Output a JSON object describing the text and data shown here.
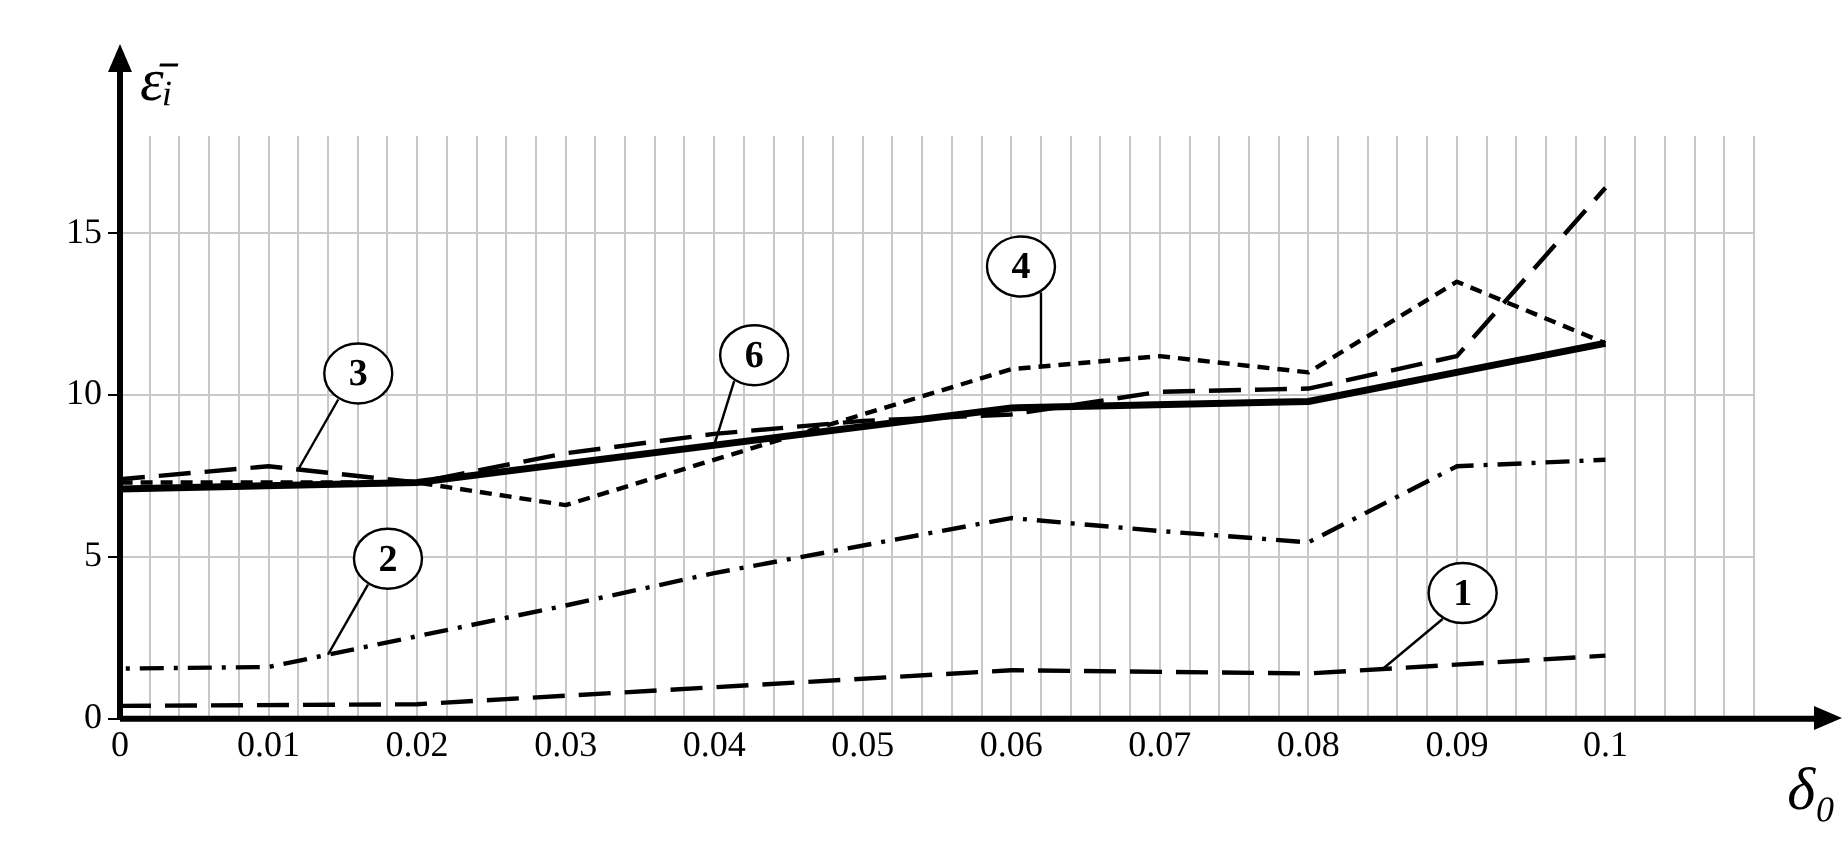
{
  "chart_data": {
    "type": "line",
    "xlabel": "δ₀",
    "ylabel": "ε̄ᵢ",
    "xlim": [
      0,
      0.11
    ],
    "ylim": [
      0,
      18
    ],
    "xticks": [
      0,
      {
        "value": 0.002,
        "label": null
      },
      {
        "value": 0.004,
        "label": null
      },
      {
        "value": 0.006,
        "label": null
      },
      {
        "value": 0.008,
        "label": null
      },
      0.01,
      {
        "value": 0.012,
        "label": null
      },
      {
        "value": 0.014,
        "label": null
      },
      {
        "value": 0.016,
        "label": null
      },
      {
        "value": 0.018,
        "label": null
      },
      0.02,
      {
        "value": 0.022,
        "label": null
      },
      {
        "value": 0.024,
        "label": null
      },
      {
        "value": 0.026,
        "label": null
      },
      {
        "value": 0.028,
        "label": null
      },
      0.03,
      {
        "value": 0.032,
        "label": null
      },
      {
        "value": 0.034,
        "label": null
      },
      {
        "value": 0.036,
        "label": null
      },
      {
        "value": 0.038,
        "label": null
      },
      0.04,
      {
        "value": 0.042,
        "label": null
      },
      {
        "value": 0.044,
        "label": null
      },
      {
        "value": 0.046,
        "label": null
      },
      {
        "value": 0.048,
        "label": null
      },
      0.05,
      {
        "value": 0.052,
        "label": null
      },
      {
        "value": 0.054,
        "label": null
      },
      {
        "value": 0.056,
        "label": null
      },
      {
        "value": 0.058,
        "label": null
      },
      0.06,
      {
        "value": 0.062,
        "label": null
      },
      {
        "value": 0.064,
        "label": null
      },
      {
        "value": 0.066,
        "label": null
      },
      {
        "value": 0.068,
        "label": null
      },
      0.07,
      {
        "value": 0.072,
        "label": null
      },
      {
        "value": 0.074,
        "label": null
      },
      {
        "value": 0.076,
        "label": null
      },
      {
        "value": 0.078,
        "label": null
      },
      0.08,
      {
        "value": 0.082,
        "label": null
      },
      {
        "value": 0.084,
        "label": null
      },
      {
        "value": 0.086,
        "label": null
      },
      {
        "value": 0.088,
        "label": null
      },
      0.09,
      {
        "value": 0.092,
        "label": null
      },
      {
        "value": 0.094,
        "label": null
      },
      {
        "value": 0.096,
        "label": null
      },
      {
        "value": 0.098,
        "label": null
      },
      0.1,
      {
        "value": 0.102,
        "label": null
      },
      {
        "value": 0.104,
        "label": null
      },
      {
        "value": 0.106,
        "label": null
      },
      {
        "value": 0.108,
        "label": null
      },
      {
        "value": 0.11,
        "label": null
      }
    ],
    "yticks": [
      0,
      5,
      10,
      15
    ],
    "grid": true,
    "legend": false,
    "marker": "none",
    "series": [
      {
        "name": "1",
        "color": "#000000",
        "line_style": "dashed",
        "x": [
          0,
          0.02,
          0.06,
          0.08,
          0.1
        ],
        "values": [
          0.4,
          0.45,
          1.5,
          1.4,
          1.95
        ]
      },
      {
        "name": "2",
        "color": "#000000",
        "line_style": "dashdot",
        "x": [
          0,
          0.01,
          0.03,
          0.04,
          0.06,
          0.07,
          0.08,
          0.09,
          0.1
        ],
        "values": [
          1.55,
          1.6,
          3.5,
          4.5,
          6.2,
          5.8,
          5.45,
          7.8,
          8.0
        ]
      },
      {
        "name": "3",
        "color": "#000000",
        "line_style": "dashed",
        "x": [
          0,
          0.01,
          0.02,
          0.03,
          0.04,
          0.05,
          0.06,
          0.07,
          0.08,
          0.09,
          0.1
        ],
        "values": [
          7.4,
          7.8,
          7.3,
          8.2,
          8.8,
          9.2,
          9.4,
          10.1,
          10.2,
          11.2,
          16.4
        ]
      },
      {
        "name": "4",
        "color": "#000000",
        "line_style": "dotted",
        "x": [
          0,
          0.02,
          0.03,
          0.06,
          0.07,
          0.08,
          0.09,
          0.1
        ],
        "values": [
          7.3,
          7.3,
          6.6,
          10.8,
          11.2,
          10.7,
          13.5,
          11.6
        ]
      },
      {
        "name": "6",
        "color": "#000000",
        "line_style": "solid",
        "x": [
          0,
          0.02,
          0.06,
          0.08,
          0.1
        ],
        "values": [
          7.1,
          7.3,
          9.6,
          9.8,
          11.6
        ]
      }
    ]
  }
}
